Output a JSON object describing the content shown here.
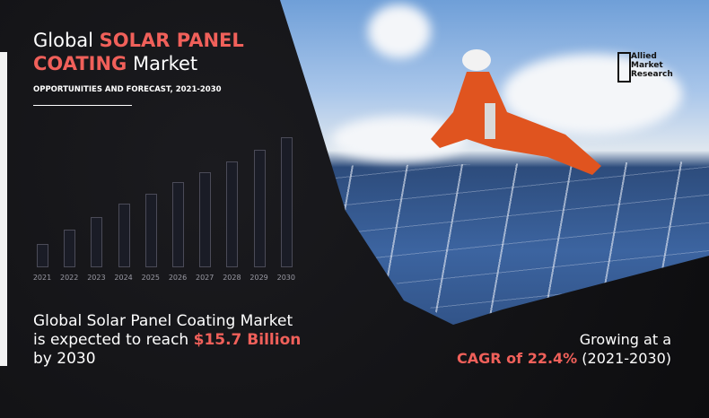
{
  "header": {
    "title_pre": "Global ",
    "title_highlight1": "SOLAR PANEL",
    "title_highlight2": "COATING",
    "title_post": " Market",
    "subtitle": "OPPORTUNITIES AND FORECAST, 2021-2030"
  },
  "logo": {
    "line1": "Allied",
    "line2": "Market",
    "line3": "Research"
  },
  "chart_data": {
    "type": "bar",
    "categories": [
      "2021",
      "2022",
      "2023",
      "2024",
      "2025",
      "2026",
      "2027",
      "2028",
      "2029",
      "2030"
    ],
    "relative_levels_percent": [
      17,
      28,
      38,
      48,
      56,
      65,
      73,
      81,
      90,
      100
    ],
    "title": "",
    "xlabel": "",
    "ylabel": "",
    "grid": false
  },
  "summary": {
    "line1": "Global  Solar Panel Coating Market",
    "line2_pre": "is expected to reach ",
    "value": "$15.7 Billion",
    "line3": "by 2030"
  },
  "cagr": {
    "line1": "Growing at a",
    "label": "CAGR of 22.4%",
    "period": " (2021-2030)"
  },
  "colors": {
    "accent": "#f0605a",
    "background": "#121214"
  }
}
